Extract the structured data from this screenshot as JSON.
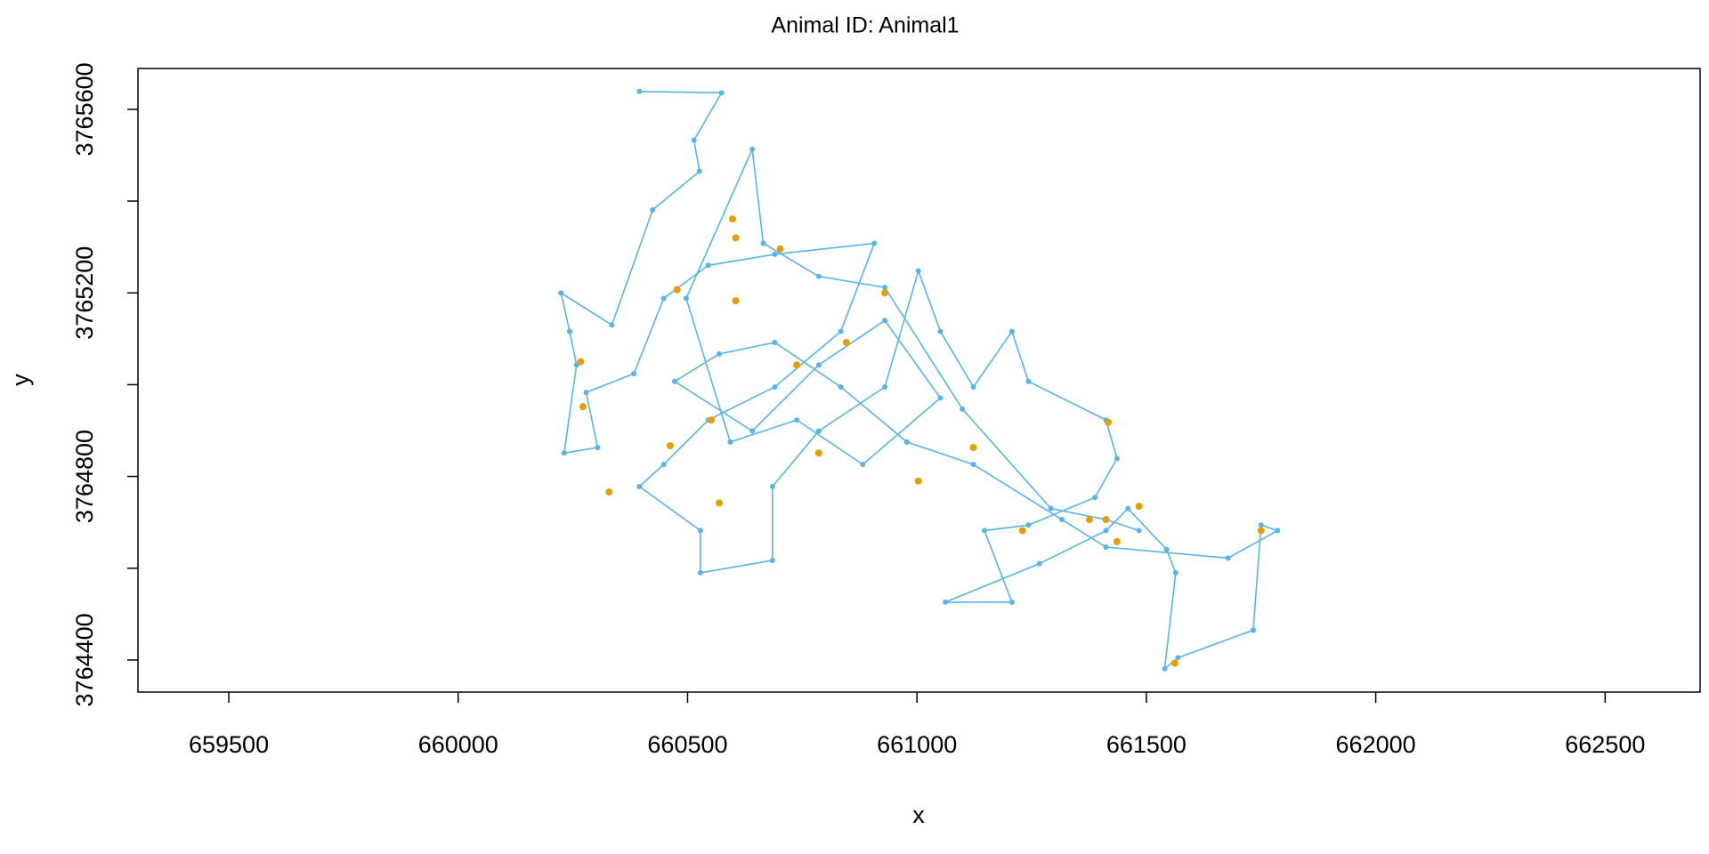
{
  "chart_data": {
    "type": "line",
    "title": "Animal ID: Animal1",
    "x_label": "x",
    "y_label": "y",
    "xlim": [
      659302,
      662707
    ],
    "ylim": [
      3764330,
      3765689
    ],
    "xticks": [
      659500,
      660000,
      660500,
      661000,
      661500,
      662000,
      662500
    ],
    "yticks": [
      3764400,
      3764800,
      3765200,
      3765600
    ],
    "yticks_unlabeled": [
      3764600,
      3765000,
      3765400
    ],
    "series": [
      {
        "type": "line",
        "color": "#56B4E9",
        "x": [
          660395,
          660574,
          660514,
          660526,
          660424,
          660335,
          660224,
          660243,
          660258,
          660231,
          660304,
          660279,
          660383,
          660448,
          660545,
          660690,
          660907,
          660834,
          660690,
          660545,
          660448,
          660395,
          660528,
          660528,
          660685,
          660685,
          660786,
          660930,
          661003,
          661051,
          661123,
          661207,
          661243,
          661412,
          661436,
          661388,
          661243,
          661147,
          661207,
          661062,
          661267,
          661412,
          661460,
          661544,
          661564,
          661540,
          661569,
          661733,
          661750,
          661786,
          661678,
          661412,
          661316,
          661123,
          660978,
          660834,
          660690,
          660569,
          660472,
          660641,
          660786,
          660930,
          661051,
          660882,
          660738,
          660593,
          660497,
          660641,
          660665,
          660786,
          660930,
          661099,
          661292,
          661412,
          661484
        ],
        "values": [
          3765639,
          3765636,
          3765533,
          3765465,
          3765381,
          3765130,
          3765200,
          3765116,
          3765043,
          3764851,
          3764863,
          3764983,
          3765024,
          3765188,
          3765260,
          3765284,
          3765308,
          3765116,
          3764995,
          3764923,
          3764826,
          3764778,
          3764682,
          3764590,
          3764617,
          3764778,
          3764899,
          3764995,
          3765248,
          3765116,
          3764995,
          3765116,
          3765007,
          3764923,
          3764839,
          3764754,
          3764694,
          3764682,
          3764526,
          3764526,
          3764610,
          3764682,
          3764730,
          3764641,
          3764590,
          3764381,
          3764405,
          3764465,
          3764694,
          3764682,
          3764622,
          3764646,
          3764706,
          3764826,
          3764875,
          3764995,
          3765092,
          3765067,
          3765007,
          3764899,
          3765043,
          3765140,
          3764971,
          3764826,
          3764923,
          3764875,
          3765188,
          3765513,
          3765308,
          3765236,
          3765212,
          3764947,
          3764730,
          3764706,
          3764682
        ]
      },
      {
        "type": "scatter",
        "color": "#E69F00",
        "x": [
          660598,
          660605,
          660477,
          660605,
          660267,
          660272,
          660462,
          660552,
          660738,
          660846,
          660930,
          661417,
          661123,
          661003,
          661230,
          661412,
          661436,
          661562,
          661750,
          660329,
          660569,
          660786,
          660702,
          661484,
          661376
        ],
        "values": [
          3765361,
          3765320,
          3765207,
          3765183,
          3765050,
          3764952,
          3764867,
          3764923,
          3765043,
          3765092,
          3765200,
          3764918,
          3764863,
          3764790,
          3764682,
          3764706,
          3764658,
          3764393,
          3764682,
          3764766,
          3764742,
          3764851,
          3765296,
          3764735,
          3764706
        ]
      }
    ]
  }
}
